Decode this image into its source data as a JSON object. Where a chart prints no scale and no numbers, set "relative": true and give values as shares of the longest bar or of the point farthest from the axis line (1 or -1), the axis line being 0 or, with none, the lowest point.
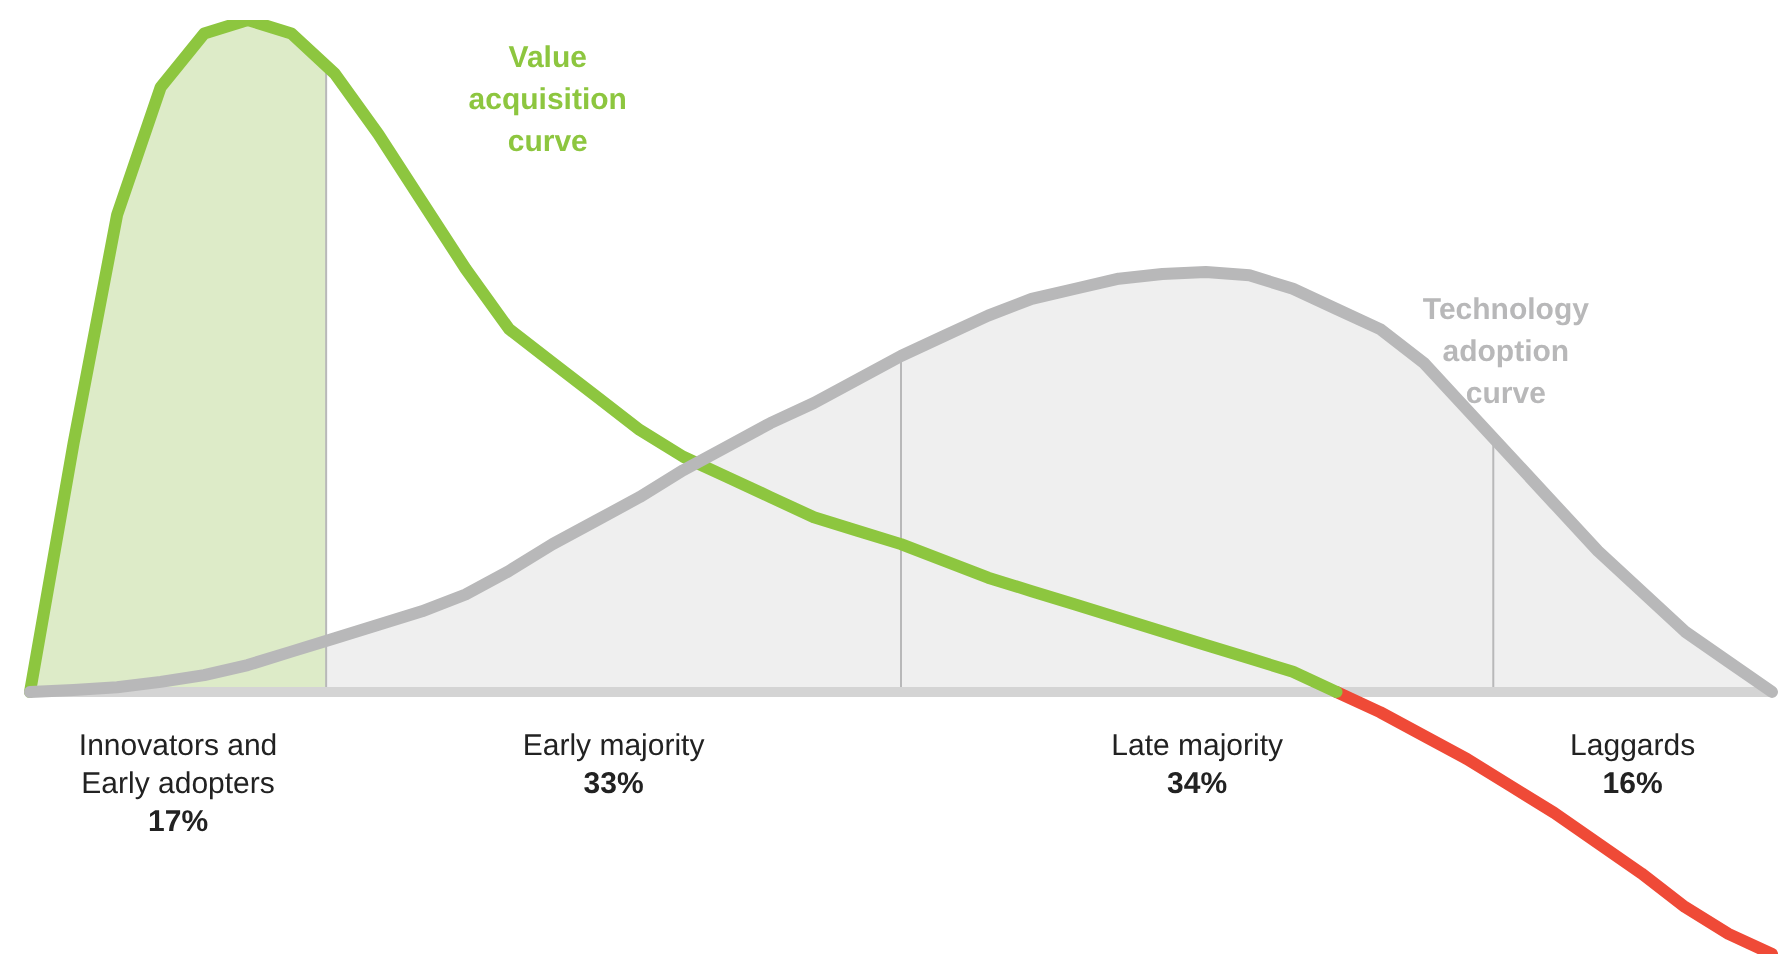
{
  "chart_data": {
    "type": "line",
    "relative": true,
    "categories": [
      null,
      null,
      null,
      null,
      null,
      null,
      null,
      null,
      null,
      null,
      null,
      null,
      null,
      null,
      null,
      null,
      null,
      null,
      null,
      null,
      null,
      null,
      null,
      null,
      null,
      null,
      null,
      null,
      null,
      null,
      null,
      null,
      null,
      null,
      null,
      null,
      null,
      null,
      null,
      null,
      null
    ],
    "series": [
      {
        "name": "Technology adoption curve",
        "color": "#b8b8b9",
        "values": [
          0,
          0.003,
          0.007,
          0.015,
          0.025,
          0.04,
          0.06,
          0.08,
          0.1,
          0.12,
          0.145,
          0.18,
          0.22,
          0.255,
          0.29,
          0.33,
          0.365,
          0.4,
          0.43,
          0.465,
          0.5,
          0.53,
          0.56,
          0.585,
          0.6,
          0.615,
          0.622,
          0.625,
          0.62,
          0.6,
          0.57,
          0.54,
          0.49,
          0.42,
          0.35,
          0.28,
          0.21,
          0.15,
          0.09,
          0.045,
          0
        ]
      },
      {
        "name": "Value acquisition curve",
        "color": "#8dc63f",
        "values": [
          0,
          0.37,
          0.71,
          0.9,
          0.98,
          1,
          0.98,
          0.92,
          0.83,
          0.73,
          0.63,
          0.54,
          0.49,
          0.44,
          0.39,
          0.35,
          0.32,
          0.29,
          0.26,
          0.24,
          0.22,
          0.195,
          0.17,
          0.15,
          0.13,
          0.11,
          0.09,
          0.07,
          0.05,
          0.03,
          0,
          null,
          null,
          null,
          null,
          null,
          null,
          null,
          null,
          null,
          null
        ]
      },
      {
        "color": "#ef4a37",
        "values": [
          null,
          null,
          null,
          null,
          null,
          null,
          null,
          null,
          null,
          null,
          null,
          null,
          null,
          null,
          null,
          null,
          null,
          null,
          null,
          null,
          null,
          null,
          null,
          null,
          null,
          null,
          null,
          null,
          null,
          null,
          0,
          -0.03,
          -0.065,
          -0.1,
          -0.14,
          -0.18,
          -0.225,
          -0.27,
          -0.32,
          -0.36,
          -0.39
        ]
      }
    ],
    "annotations": [
      "Innovators and\nEarly adopters\n17%",
      "Early majority\n33%",
      "Late majority\n34%",
      "Laggards\n16%"
    ]
  }
}
